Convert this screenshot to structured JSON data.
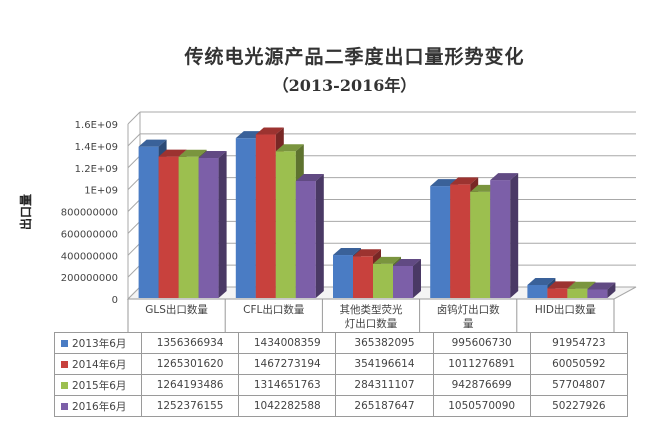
{
  "chart_data": {
    "type": "bar",
    "title": "传统电光源产品二季度出口量形势变化",
    "subtitle": "（2013-2016年）",
    "xlabel": "",
    "ylabel": "出口量",
    "ylim": [
      0,
      1600000000
    ],
    "y_ticks": [
      "0",
      "200000000",
      "400000000",
      "600000000",
      "800000000",
      "1E+09",
      "1.2E+09",
      "1.4E+09",
      "1.6E+09"
    ],
    "grid": true,
    "legend_position": "data-table",
    "categories": [
      "GLS出口数量",
      "CFL出口数量",
      "其他类型荧光灯出口数量",
      "卤钨灯出口数量",
      "HID出口数量"
    ],
    "category_labels_display": [
      [
        "GLS出口数量"
      ],
      [
        "CFL出口数量"
      ],
      [
        "其他类型荧光",
        "灯出口数量"
      ],
      [
        "卤钨灯出口数",
        "量"
      ],
      [
        "HID出口数量"
      ]
    ],
    "series": [
      {
        "name": "2013年6月",
        "color": "#4a7cc4",
        "values": [
          1356366934,
          1434008359,
          365382095,
          995606730,
          91954723
        ]
      },
      {
        "name": "2014年6月",
        "color": "#c8413d",
        "values": [
          1265301620,
          1467273194,
          354196614,
          1011276891,
          60050592
        ]
      },
      {
        "name": "2015年6月",
        "color": "#9cbf4f",
        "values": [
          1264193486,
          1314651763,
          284311107,
          942876699,
          57704807
        ]
      },
      {
        "name": "2016年6月",
        "color": "#7c5fa8",
        "values": [
          1252376155,
          1042282588,
          265187647,
          1050570090,
          50227926
        ]
      }
    ],
    "table": {
      "rows": [
        {
          "label": "2013年6月",
          "values": [
            "1356366934",
            "1434008359",
            "365382095",
            "995606730",
            "91954723"
          ]
        },
        {
          "label": "2014年6月",
          "values": [
            "1265301620",
            "1467273194",
            "354196614",
            "1011276891",
            "60050592"
          ]
        },
        {
          "label": "2015年6月",
          "values": [
            "1264193486",
            "1314651763",
            "284311107",
            "942876699",
            "57704807"
          ]
        },
        {
          "label": "2016年6月",
          "values": [
            "1252376155",
            "1042282588",
            "265187647",
            "1050570090",
            "50227926"
          ]
        }
      ]
    }
  }
}
